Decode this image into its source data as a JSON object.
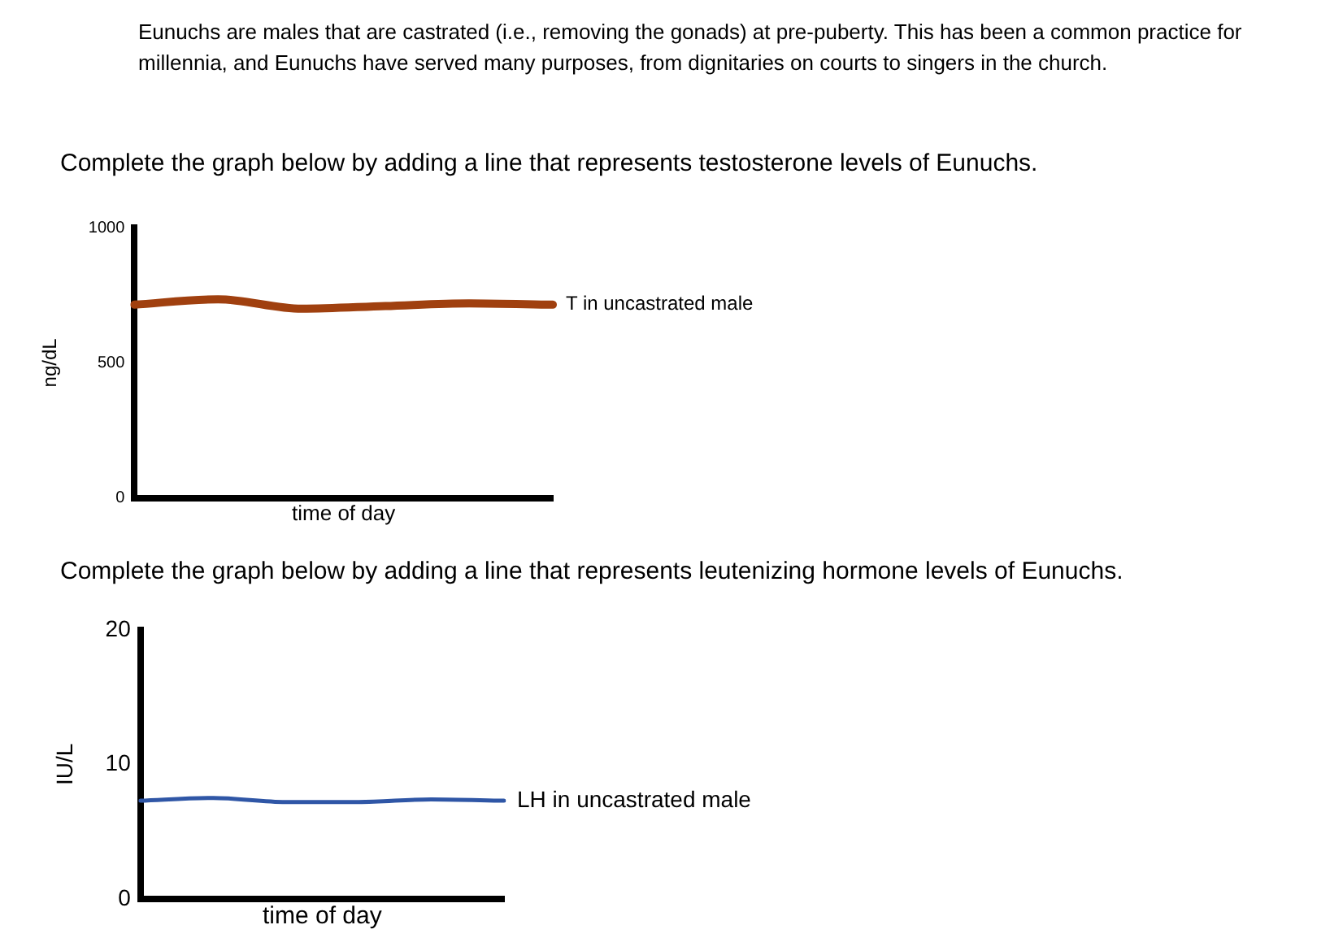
{
  "chart_data": [
    {
      "type": "line",
      "title": "Complete the graph below by adding a line that represents testosterone levels of Eunuchs.",
      "annotations": [
        "Eunuchs are males that are castrated (i.e., removing the gonads) at pre-puberty. This has been a common practice for millennia, and Eunuchs have served many purposes, from dignitaries on courts to singers in the church."
      ],
      "xlabel": "time of day",
      "ylabel": "ng/dL",
      "categories": [
        null,
        null,
        null,
        null,
        null,
        null
      ],
      "ylim": [
        0,
        1000
      ],
      "yticks": [
        0,
        500,
        1000
      ],
      "tick_labels": "y",
      "grid": false,
      "legend": false,
      "marker": "none",
      "series": [
        {
          "name": "T in uncastrated male",
          "color": "#a0400f",
          "values": [
            715,
            735,
            700,
            710,
            720,
            715
          ]
        }
      ]
    },
    {
      "type": "line",
      "title": "Complete the graph below by adding a line that represents leutenizing hormone levels of Eunuchs.",
      "xlabel": "time of day",
      "ylabel": "IU/L",
      "categories": [
        null,
        null,
        null,
        null,
        null,
        null
      ],
      "ylim": [
        0,
        20
      ],
      "yticks": [
        0,
        10,
        20
      ],
      "tick_labels": "y",
      "grid": false,
      "legend": false,
      "marker": "none",
      "series": [
        {
          "name": "LH in uncastrated male",
          "color": "#2f56a6",
          "values": [
            7.3,
            7.5,
            7.2,
            7.2,
            7.4,
            7.3
          ]
        }
      ]
    }
  ]
}
